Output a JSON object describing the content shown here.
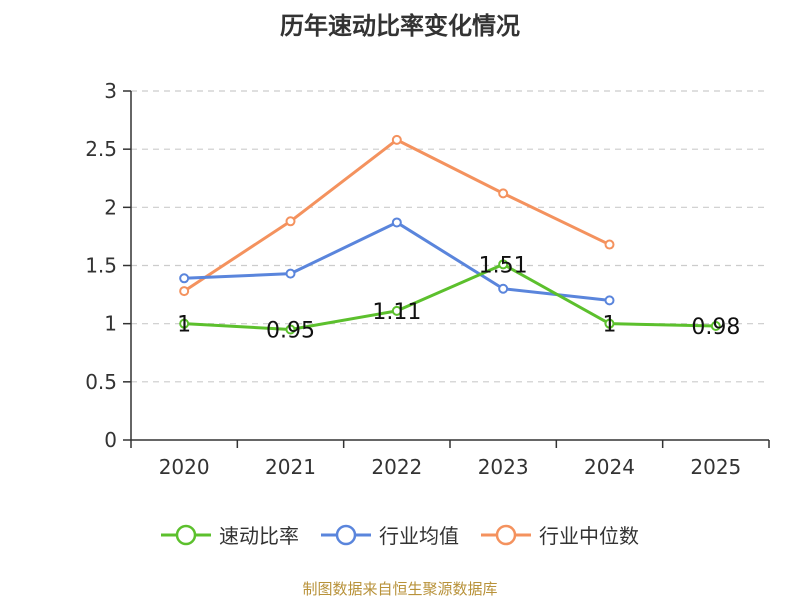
{
  "chart_data": {
    "type": "line",
    "title": "历年速动比率变化情况",
    "categories": [
      "2020",
      "2021",
      "2022",
      "2023",
      "2024",
      "2025"
    ],
    "ylim": [
      0,
      3
    ],
    "yticks": [
      "0",
      "0.5",
      "1",
      "1.5",
      "2",
      "2.5",
      "3"
    ],
    "ytick_values": [
      0,
      0.5,
      1,
      1.5,
      2,
      2.5,
      3
    ],
    "grid": true,
    "legend_position": "bottom",
    "series": [
      {
        "name": "速动比率",
        "color": "#5cc02d",
        "values": [
          1,
          0.95,
          1.11,
          1.51,
          1,
          0.98
        ],
        "labels": [
          "1",
          "0.95",
          "1.11",
          "1.51",
          "1",
          "0.98"
        ]
      },
      {
        "name": "行业均值",
        "color": "#5a85dc",
        "values": [
          1.39,
          1.43,
          1.87,
          1.3,
          1.2,
          null
        ]
      },
      {
        "name": "行业中位数",
        "color": "#f4925e",
        "values": [
          1.28,
          1.88,
          2.58,
          2.12,
          1.68,
          null
        ]
      }
    ]
  },
  "footer": {
    "source": "制图数据来自恒生聚源数据库"
  }
}
